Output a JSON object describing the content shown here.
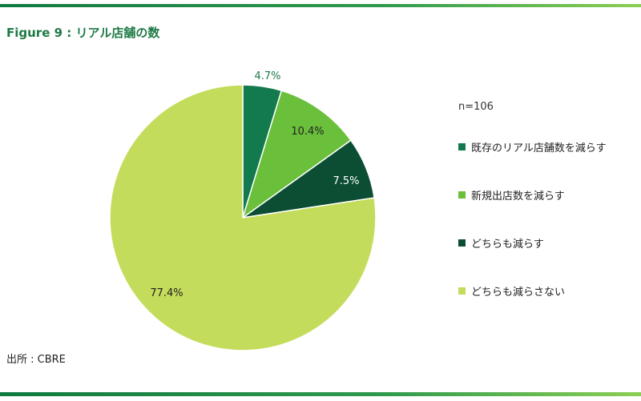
{
  "title": "Figure 9 : リアル店舗の数",
  "source": "出所 : CBRE",
  "chart_data": {
    "type": "pie",
    "n_label": "n=106",
    "start_angle_deg": 0,
    "direction": "clockwise",
    "slices": [
      {
        "label": "既存のリアル店舗数を減らす",
        "value": 4.7,
        "display": "4.7%",
        "color": "#137a4e"
      },
      {
        "label": "新規出店数を減らす",
        "value": 10.4,
        "display": "10.4%",
        "color": "#6abf3b"
      },
      {
        "label": "どちらも減らす",
        "value": 7.5,
        "display": "7.5%",
        "color": "#0b4e33"
      },
      {
        "label": "どちらも減らさない",
        "value": 77.4,
        "display": "77.4%",
        "color": "#c4dc5c"
      }
    ],
    "legend_position": "right"
  }
}
